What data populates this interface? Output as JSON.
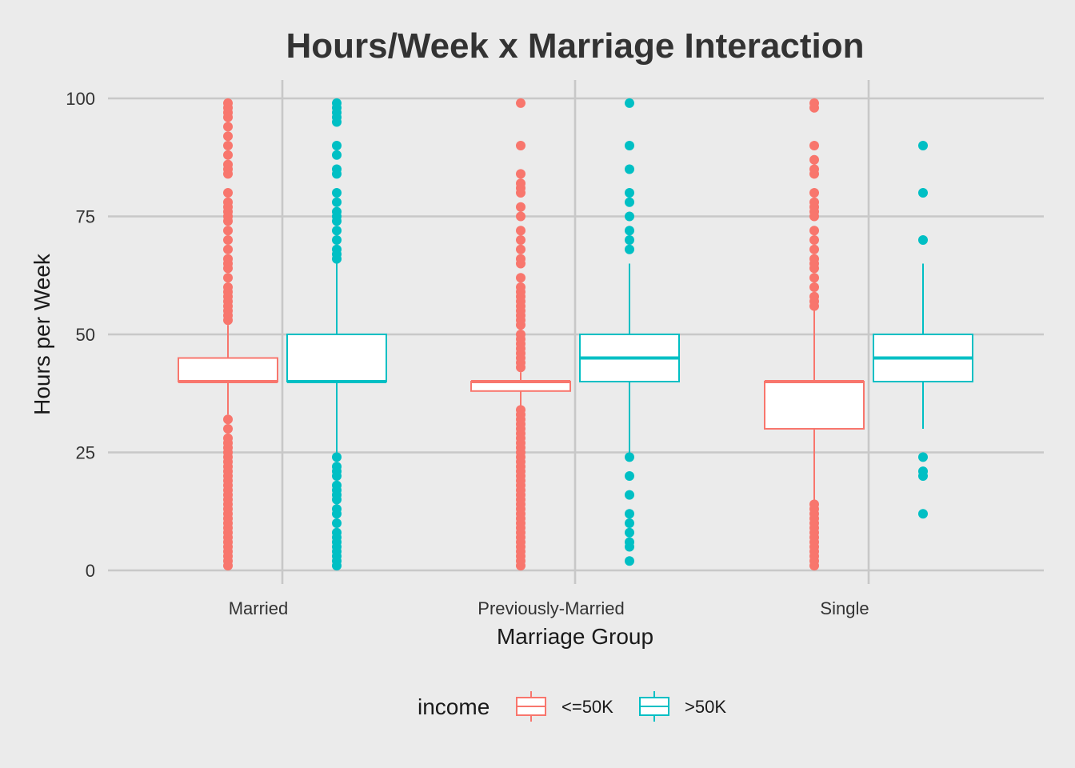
{
  "chart_data": {
    "type": "boxplot",
    "title": "Hours/Week x Marriage Interaction",
    "xlabel": "Marriage Group",
    "ylabel": "Hours per Week",
    "categories": [
      "Married",
      "Previously-Married",
      "Single"
    ],
    "ylim": [
      0,
      100
    ],
    "yticks": [
      0,
      25,
      50,
      75,
      100
    ],
    "grid": true,
    "legend": {
      "title": "income",
      "position": "bottom"
    },
    "series": [
      {
        "name": "<=50K",
        "color": "#f8766d",
        "boxes": [
          {
            "category": "Married",
            "whisker_low": 33,
            "q1": 40,
            "median": 40,
            "q3": 45,
            "whisker_high": 52,
            "outliers": [
              1,
              2,
              3,
              4,
              5,
              6,
              7,
              8,
              9,
              10,
              11,
              12,
              13,
              14,
              15,
              16,
              17,
              18,
              19,
              20,
              21,
              22,
              23,
              24,
              25,
              26,
              27,
              28,
              30,
              32,
              53,
              54,
              55,
              56,
              57,
              58,
              59,
              60,
              62,
              64,
              65,
              66,
              68,
              70,
              72,
              74,
              75,
              76,
              77,
              78,
              80,
              84,
              85,
              86,
              88,
              90,
              92,
              94,
              96,
              97,
              98,
              99
            ]
          },
          {
            "category": "Previously-Married",
            "whisker_low": 35,
            "q1": 38,
            "median": 40,
            "q3": 40,
            "whisker_high": 42,
            "outliers": [
              1,
              2,
              3,
              4,
              5,
              6,
              7,
              8,
              9,
              10,
              11,
              12,
              13,
              14,
              15,
              16,
              17,
              18,
              19,
              20,
              21,
              22,
              23,
              24,
              25,
              26,
              27,
              28,
              29,
              30,
              31,
              32,
              33,
              34,
              43,
              44,
              45,
              46,
              47,
              48,
              49,
              50,
              52,
              53,
              54,
              55,
              56,
              57,
              58,
              59,
              60,
              62,
              65,
              66,
              68,
              70,
              72,
              75,
              77,
              80,
              81,
              82,
              84,
              90,
              99
            ]
          },
          {
            "category": "Single",
            "whisker_low": 15,
            "q1": 30,
            "median": 40,
            "q3": 40,
            "whisker_high": 55,
            "outliers": [
              1,
              2,
              3,
              4,
              5,
              6,
              7,
              8,
              9,
              10,
              11,
              12,
              13,
              14,
              56,
              57,
              58,
              60,
              62,
              64,
              65,
              66,
              68,
              70,
              72,
              75,
              76,
              77,
              78,
              80,
              84,
              85,
              87,
              90,
              98,
              99
            ]
          }
        ]
      },
      {
        "name": ">50K",
        "color": "#00bfc4",
        "boxes": [
          {
            "category": "Married",
            "whisker_low": 25,
            "q1": 40,
            "median": 40,
            "q3": 50,
            "whisker_high": 65,
            "outliers": [
              1,
              2,
              3,
              4,
              5,
              6,
              7,
              8,
              10,
              12,
              13,
              15,
              16,
              17,
              18,
              20,
              21,
              22,
              24,
              66,
              67,
              68,
              70,
              72,
              74,
              75,
              76,
              78,
              80,
              84,
              85,
              88,
              90,
              95,
              96,
              97,
              98,
              99
            ]
          },
          {
            "category": "Previously-Married",
            "whisker_low": 25,
            "q1": 40,
            "median": 45,
            "q3": 50,
            "whisker_high": 65,
            "outliers": [
              2,
              5,
              6,
              8,
              10,
              12,
              16,
              20,
              24,
              68,
              70,
              72,
              75,
              78,
              80,
              85,
              90,
              99
            ]
          },
          {
            "category": "Single",
            "whisker_low": 30,
            "q1": 40,
            "median": 45,
            "q3": 50,
            "whisker_high": 65,
            "outliers": [
              12,
              20,
              21,
              24,
              70,
              80,
              90
            ]
          }
        ]
      }
    ]
  }
}
